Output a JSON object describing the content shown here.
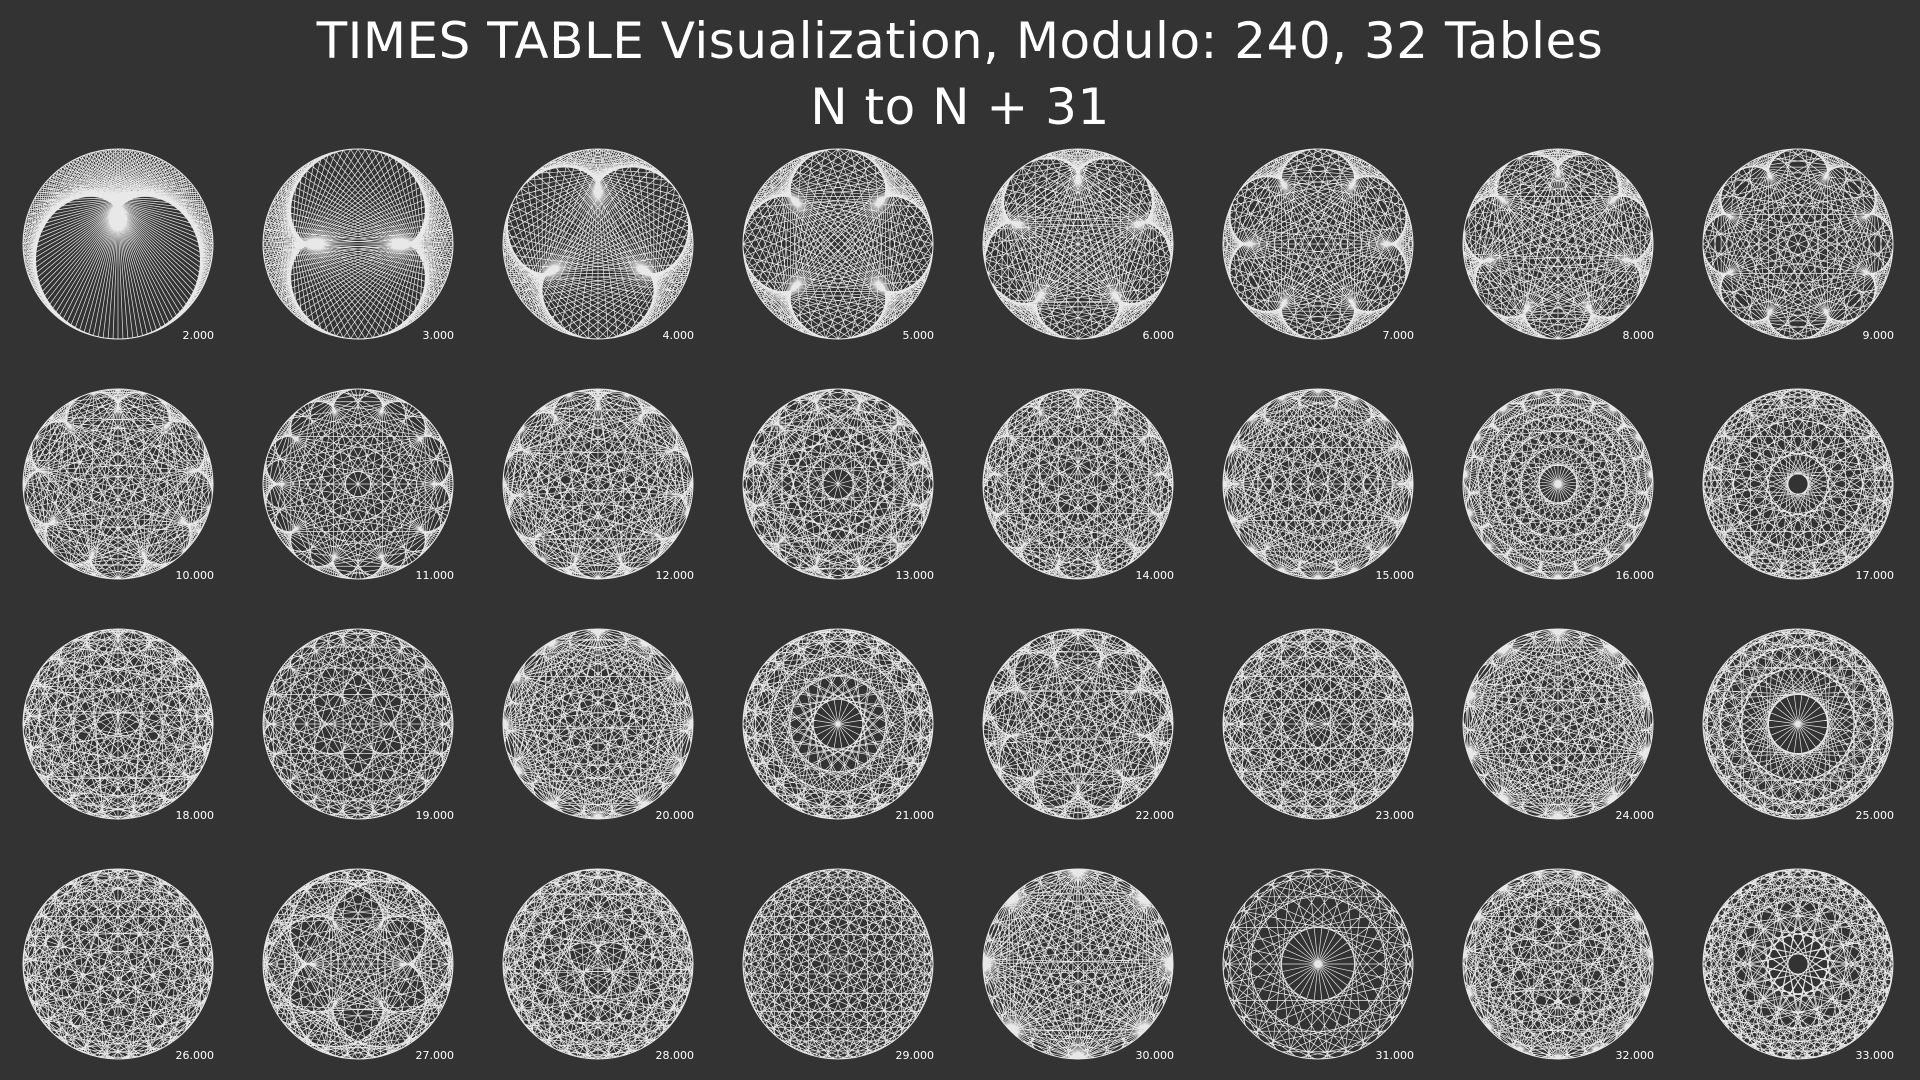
{
  "header": {
    "title": "TIMES TABLE Visualization, Modulo: 240, 32 Tables",
    "subtitle": "N to N + 31"
  },
  "visualization": {
    "modulo": 240,
    "table_count": 32,
    "columns": 8,
    "line_color": "#e8e8e8",
    "background_color": "#333333",
    "tables": [
      {
        "multiplier": 2,
        "label": "2.000"
      },
      {
        "multiplier": 3,
        "label": "3.000"
      },
      {
        "multiplier": 4,
        "label": "4.000"
      },
      {
        "multiplier": 5,
        "label": "5.000"
      },
      {
        "multiplier": 6,
        "label": "6.000"
      },
      {
        "multiplier": 7,
        "label": "7.000"
      },
      {
        "multiplier": 8,
        "label": "8.000"
      },
      {
        "multiplier": 9,
        "label": "9.000"
      },
      {
        "multiplier": 10,
        "label": "10.000"
      },
      {
        "multiplier": 11,
        "label": "11.000"
      },
      {
        "multiplier": 12,
        "label": "12.000"
      },
      {
        "multiplier": 13,
        "label": "13.000"
      },
      {
        "multiplier": 14,
        "label": "14.000"
      },
      {
        "multiplier": 15,
        "label": "15.000"
      },
      {
        "multiplier": 16,
        "label": "16.000"
      },
      {
        "multiplier": 17,
        "label": "17.000"
      },
      {
        "multiplier": 18,
        "label": "18.000"
      },
      {
        "multiplier": 19,
        "label": "19.000"
      },
      {
        "multiplier": 20,
        "label": "20.000"
      },
      {
        "multiplier": 21,
        "label": "21.000"
      },
      {
        "multiplier": 22,
        "label": "22.000"
      },
      {
        "multiplier": 23,
        "label": "23.000"
      },
      {
        "multiplier": 24,
        "label": "24.000"
      },
      {
        "multiplier": 25,
        "label": "25.000"
      },
      {
        "multiplier": 26,
        "label": "26.000"
      },
      {
        "multiplier": 27,
        "label": "27.000"
      },
      {
        "multiplier": 28,
        "label": "28.000"
      },
      {
        "multiplier": 29,
        "label": "29.000"
      },
      {
        "multiplier": 30,
        "label": "30.000"
      },
      {
        "multiplier": 31,
        "label": "31.000"
      },
      {
        "multiplier": 32,
        "label": "32.000"
      },
      {
        "multiplier": 33,
        "label": "33.000"
      }
    ]
  }
}
